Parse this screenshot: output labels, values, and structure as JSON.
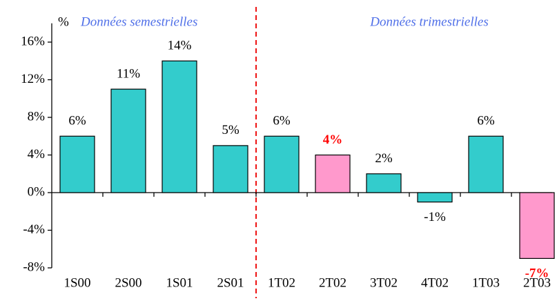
{
  "chart_data": {
    "type": "bar",
    "annotations": [
      "%",
      "Données semestrielles",
      "Données trimestrielles"
    ],
    "categories": [
      "1S00",
      "2S00",
      "1S01",
      "2S01",
      "1T02",
      "2T02",
      "3T02",
      "4T02",
      "1T03",
      "2T03"
    ],
    "values": [
      6,
      11,
      14,
      5,
      6,
      4,
      2,
      -1,
      6,
      -7
    ],
    "value_labels": [
      "6%",
      "11%",
      "14%",
      "5%",
      "6%",
      "4%",
      "2%",
      "-1%",
      "6%",
      "-7%"
    ],
    "colors": [
      "#33cccc",
      "#33cccc",
      "#33cccc",
      "#33cccc",
      "#33cccc",
      "#ff99cc",
      "#33cccc",
      "#33cccc",
      "#33cccc",
      "#ff99cc"
    ],
    "value_label_colors": [
      "#000000",
      "#000000",
      "#000000",
      "#000000",
      "#000000",
      "#ff0000",
      "#000000",
      "#000000",
      "#000000",
      "#ff0000"
    ],
    "ylim": [
      -8,
      18
    ],
    "yticks": [
      {
        "value": -8,
        "label": "-8%"
      },
      {
        "value": -4,
        "label": "-4%"
      },
      {
        "value": 0,
        "label": "0%"
      },
      {
        "value": 4,
        "label": "4%"
      },
      {
        "value": 8,
        "label": "8%"
      },
      {
        "value": 12,
        "label": "12%"
      },
      {
        "value": 16,
        "label": "16%"
      }
    ],
    "grid": false
  }
}
